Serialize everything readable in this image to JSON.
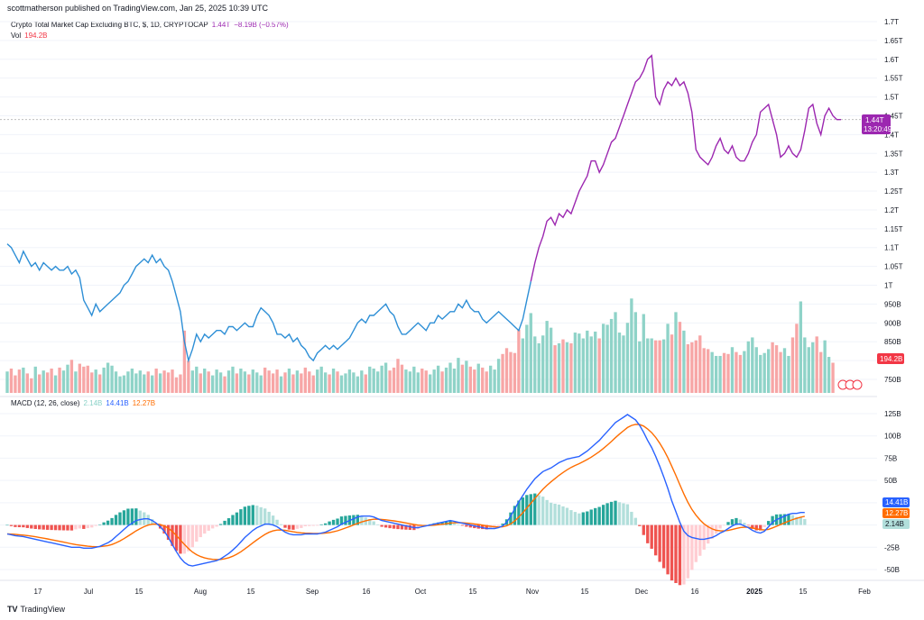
{
  "header": {
    "publisher": "scottmatherson published on TradingView.com, Jan 25, 2025 10:39 UTC"
  },
  "legend": {
    "title": "Crypto Total Market Cap Excluding BTC, $, 1D, CRYPTOCAP",
    "last": "1.44T",
    "change": "−8.19B (−0.57%)",
    "vol_label": "Vol",
    "vol_value": "194.2B",
    "macd_label": "MACD (12, 26, close)",
    "macd_hist": "2.14B",
    "macd_line": "14.41B",
    "macd_signal": "12.27B"
  },
  "badges": {
    "price": "1.44T",
    "countdown": "13:20:49",
    "volume": "194.2B",
    "macd_line": "14.41B",
    "macd_signal": "12.27B",
    "macd_hist": "2.14B"
  },
  "footer": {
    "brand": "TradingView",
    "logo": "TV"
  },
  "colors": {
    "price_blue": "#2e8fd6",
    "price_purple": "#9c27b0",
    "vol_up": "#8fd3c8",
    "vol_down": "#f7a6a6",
    "macd_line": "#2962ff",
    "signal_line": "#ff6d00",
    "hist_up_strong": "#26a69a",
    "hist_up_weak": "#b2dfdb",
    "hist_down_strong": "#ef5350",
    "hist_down_weak": "#ffcdd2"
  },
  "chart_data": {
    "type": "line",
    "price_axis": [
      "1.7T",
      "1.65T",
      "1.6T",
      "1.55T",
      "1.5T",
      "1.45T",
      "1.4T",
      "1.35T",
      "1.3T",
      "1.25T",
      "1.2T",
      "1.15T",
      "1.1T",
      "1.05T",
      "1T",
      "950B",
      "900B",
      "850B",
      "800B",
      "750B"
    ],
    "price_range": [
      0.75,
      1.7
    ],
    "macd_axis": [
      "125B",
      "100B",
      "75B",
      "50B",
      "25B",
      "0",
      "-25B",
      "-50B"
    ],
    "macd_range": [
      -50,
      125
    ],
    "x_labels": [
      "17",
      "Jul",
      "15",
      "Aug",
      "15",
      "Sep",
      "16",
      "Oct",
      "15",
      "Nov",
      "15",
      "Dec",
      "16",
      "2025",
      "15",
      "Feb"
    ],
    "series": [
      {
        "name": "Crypto Total Market Cap Excluding BTC",
        "values": [
          1.11,
          1.1,
          1.08,
          1.06,
          1.09,
          1.07,
          1.05,
          1.06,
          1.04,
          1.06,
          1.05,
          1.04,
          1.05,
          1.04,
          1.04,
          1.05,
          1.03,
          1.04,
          1.02,
          0.96,
          0.94,
          0.92,
          0.95,
          0.93,
          0.94,
          0.95,
          0.96,
          0.97,
          0.98,
          1.0,
          1.01,
          1.03,
          1.05,
          1.06,
          1.07,
          1.06,
          1.08,
          1.06,
          1.07,
          1.05,
          1.04,
          1.01,
          0.97,
          0.93,
          0.85,
          0.8,
          0.83,
          0.87,
          0.85,
          0.87,
          0.86,
          0.87,
          0.88,
          0.88,
          0.87,
          0.89,
          0.89,
          0.88,
          0.89,
          0.9,
          0.89,
          0.89,
          0.92,
          0.94,
          0.93,
          0.92,
          0.9,
          0.87,
          0.87,
          0.86,
          0.87,
          0.85,
          0.86,
          0.84,
          0.83,
          0.81,
          0.8,
          0.82,
          0.83,
          0.84,
          0.83,
          0.84,
          0.83,
          0.84,
          0.85,
          0.86,
          0.88,
          0.9,
          0.91,
          0.9,
          0.92,
          0.92,
          0.93,
          0.94,
          0.95,
          0.93,
          0.92,
          0.89,
          0.87,
          0.87,
          0.88,
          0.89,
          0.9,
          0.89,
          0.88,
          0.9,
          0.9,
          0.92,
          0.91,
          0.92,
          0.93,
          0.93,
          0.95,
          0.94,
          0.96,
          0.94,
          0.93,
          0.93,
          0.91,
          0.9,
          0.91,
          0.92,
          0.93,
          0.92,
          0.91,
          0.9,
          0.89,
          0.88,
          0.91,
          0.96,
          1.01,
          1.06,
          1.1,
          1.13,
          1.17,
          1.18,
          1.16,
          1.19,
          1.18,
          1.2,
          1.19,
          1.22,
          1.25,
          1.27,
          1.29,
          1.33,
          1.33,
          1.3,
          1.32,
          1.35,
          1.38,
          1.39,
          1.42,
          1.45,
          1.48,
          1.51,
          1.54,
          1.55,
          1.57,
          1.6,
          1.61,
          1.5,
          1.48,
          1.52,
          1.54,
          1.53,
          1.55,
          1.53,
          1.54,
          1.51,
          1.46,
          1.36,
          1.34,
          1.33,
          1.32,
          1.34,
          1.37,
          1.39,
          1.36,
          1.35,
          1.37,
          1.34,
          1.33,
          1.33,
          1.35,
          1.38,
          1.4,
          1.46,
          1.47,
          1.48,
          1.44,
          1.4,
          1.34,
          1.35,
          1.37,
          1.35,
          1.34,
          1.36,
          1.41,
          1.47,
          1.48,
          1.43,
          1.4,
          1.45,
          1.47,
          1.45,
          1.44,
          1.44
        ]
      },
      {
        "name": "Vol",
        "values": [
          22,
          25,
          18,
          24,
          26,
          20,
          15,
          27,
          19,
          23,
          21,
          25,
          18,
          26,
          23,
          29,
          34,
          22,
          30,
          27,
          28,
          21,
          24,
          19,
          26,
          31,
          28,
          22,
          17,
          18,
          22,
          25,
          20,
          23,
          19,
          22,
          18,
          25,
          20,
          23,
          21,
          24,
          16,
          19,
          64,
          33,
          23,
          27,
          20,
          25,
          22,
          18,
          24,
          21,
          17,
          23,
          27,
          20,
          25,
          22,
          19,
          24,
          21,
          18,
          26,
          23,
          20,
          24,
          17,
          21,
          25,
          19,
          23,
          20,
          26,
          22,
          18,
          24,
          27,
          21,
          19,
          25,
          22,
          18,
          20,
          24,
          21,
          17,
          23,
          19,
          27,
          25,
          22,
          28,
          31,
          23,
          26,
          35,
          29,
          24,
          22,
          27,
          21,
          25,
          23,
          19,
          24,
          28,
          22,
          26,
          31,
          25,
          36,
          29,
          33,
          27,
          24,
          30,
          26,
          22,
          28,
          24,
          35,
          40,
          46,
          42,
          41,
          65,
          56,
          70,
          82,
          58,
          51,
          59,
          74,
          67,
          49,
          51,
          55,
          52,
          51,
          62,
          61,
          56,
          64,
          58,
          63,
          56,
          71,
          70,
          76,
          83,
          62,
          59,
          72,
          97,
          83,
          53,
          81,
          56,
          56,
          54,
          54,
          55,
          71,
          60,
          83,
          73,
          64,
          50,
          52,
          54,
          59,
          46,
          45,
          42,
          38,
          38,
          41,
          40,
          47,
          42,
          39,
          43,
          53,
          57,
          47,
          39,
          41,
          45,
          52,
          49,
          42,
          46,
          38,
          57,
          71,
          94,
          57,
          47,
          52,
          58,
          42,
          54,
          37,
          31
        ]
      }
    ],
    "macd_line": [
      -10,
      -11,
      -12,
      -12.5,
      -13,
      -14,
      -15,
      -16,
      -17,
      -18,
      -19,
      -20,
      -21,
      -22,
      -23,
      -24,
      -25,
      -25,
      -25,
      -26,
      -26,
      -26,
      -25,
      -24,
      -22,
      -20,
      -17,
      -13,
      -9,
      -5,
      -1,
      2,
      5,
      6,
      7,
      7,
      5,
      2,
      -2,
      -7,
      -14,
      -22,
      -30,
      -37,
      -42,
      -45,
      -46,
      -45,
      -44,
      -43,
      -42,
      -41,
      -40,
      -38,
      -35,
      -32,
      -28,
      -24,
      -19,
      -14,
      -10,
      -6,
      -3,
      -1,
      1,
      1,
      0,
      -2,
      -5,
      -8,
      -10,
      -11,
      -11,
      -11,
      -10,
      -10,
      -10,
      -10,
      -9,
      -8,
      -6,
      -4,
      -2,
      1,
      3,
      5,
      7,
      9,
      10,
      10,
      10,
      9,
      7,
      5,
      4,
      3,
      2,
      1,
      0,
      -1,
      -2,
      -3,
      -3,
      -2,
      -1,
      0,
      1,
      2,
      3,
      4,
      5,
      4,
      3,
      2,
      1,
      0,
      -1,
      -2,
      -3,
      -4,
      -4,
      -4,
      -3,
      -1,
      3,
      10,
      18,
      26,
      33,
      40,
      46,
      52,
      56,
      60,
      62,
      64,
      67,
      70,
      72,
      74,
      75,
      76,
      77,
      80,
      83,
      87,
      91,
      95,
      100,
      105,
      110,
      115,
      118,
      121,
      124,
      121,
      118,
      112,
      104,
      95,
      87,
      77,
      66,
      54,
      41,
      27,
      15,
      3,
      -7,
      -12,
      -14,
      -15,
      -16,
      -16,
      -15,
      -14,
      -12,
      -9,
      -7,
      -4,
      -1,
      1,
      1,
      -1,
      -3,
      -6,
      -8,
      -9,
      -7,
      -2,
      3,
      6,
      8,
      10,
      12,
      13,
      13,
      14,
      14
    ]
  },
  "ignore": true
}
